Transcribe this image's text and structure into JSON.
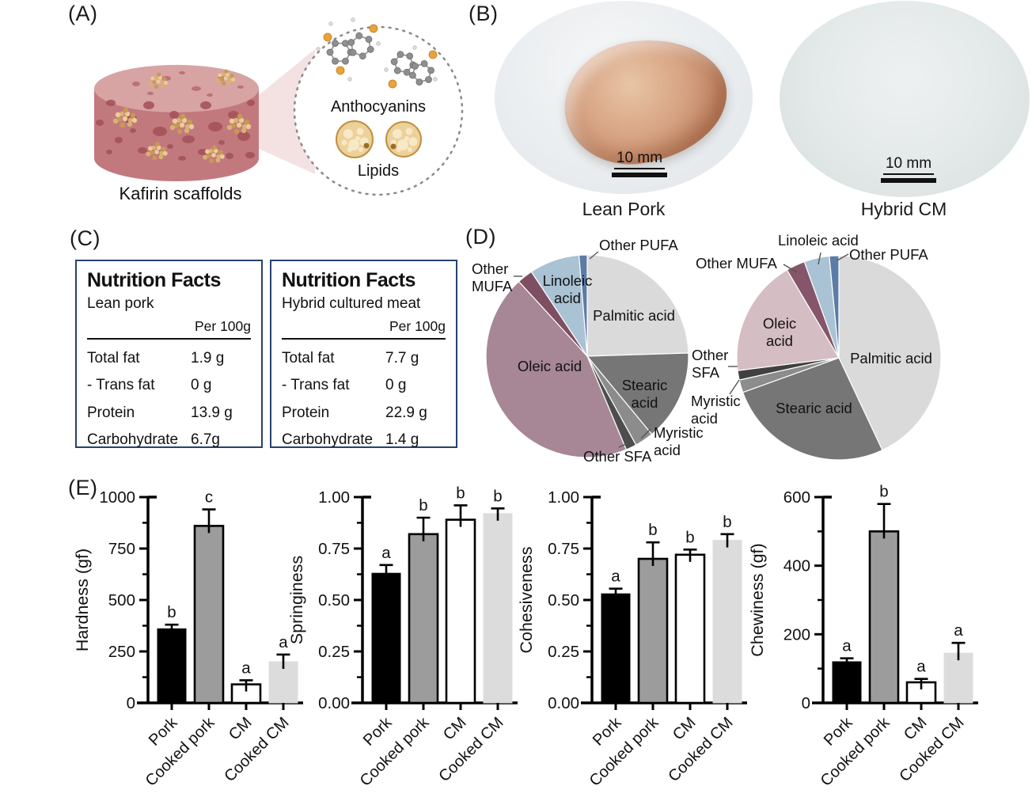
{
  "panels": {
    "a": {
      "label": "(A)",
      "scaffold_caption": "Kafirin scaffolds",
      "anthocyanins_label": "Anthocyanins",
      "lipids_label": "Lipids"
    },
    "b": {
      "label": "(B)",
      "items": [
        {
          "caption": "Lean Pork",
          "scalebar": "10 mm"
        },
        {
          "caption": "Hybrid CM",
          "scalebar": "10 mm"
        }
      ]
    },
    "c": {
      "label": "(C)",
      "tables": [
        {
          "title": "Nutrition Facts",
          "subtitle": "Lean pork",
          "per": "Per 100g",
          "rows": [
            [
              "Total fat",
              "1.9 g"
            ],
            [
              "- Trans fat",
              "0 g"
            ],
            [
              "Protein",
              "13.9 g"
            ],
            [
              "Carbohydrate",
              "6.7g"
            ]
          ]
        },
        {
          "title": "Nutrition Facts",
          "subtitle": "Hybrid cultured meat",
          "per": "Per 100g",
          "rows": [
            [
              "Total fat",
              "7.7 g"
            ],
            [
              "- Trans fat",
              "0 g"
            ],
            [
              "Protein",
              "22.9 g"
            ],
            [
              "Carbohydrate",
              "1.4 g"
            ]
          ]
        }
      ]
    },
    "d": {
      "label": "(D)"
    },
    "e": {
      "label": "(E)"
    }
  },
  "chart_data": [
    {
      "type": "pie",
      "name": "lean-pork-fatty-acid-pie",
      "legend_position": "none",
      "slices": [
        {
          "label": "Palmitic acid",
          "value": 24.5,
          "color": "#dadada"
        },
        {
          "label": "Stearic acid",
          "value": 14.5,
          "color": "#767676"
        },
        {
          "label": "Myristic acid",
          "value": 3.0,
          "color": "#8c8c8c"
        },
        {
          "label": "Other SFA",
          "value": 1.7,
          "color": "#4d4d4d"
        },
        {
          "label": "Oleic acid",
          "value": 44.5,
          "color": "#a78795"
        },
        {
          "label": "Other MUFA",
          "value": 2.5,
          "color": "#7e4f60"
        },
        {
          "label": "Linoleic acid",
          "value": 8.0,
          "color": "#a9c2d4"
        },
        {
          "label": "Other PUFA",
          "value": 1.3,
          "color": "#5c7ca6"
        }
      ]
    },
    {
      "type": "pie",
      "name": "hybrid-cm-fatty-acid-pie",
      "legend_position": "none",
      "slices": [
        {
          "label": "Palmitic acid",
          "value": 43.0,
          "color": "#dadada"
        },
        {
          "label": "Stearic acid",
          "value": 26.5,
          "color": "#767676"
        },
        {
          "label": "Myristic acid",
          "value": 2.0,
          "color": "#8c8c8c"
        },
        {
          "label": "Other SFA",
          "value": 1.5,
          "color": "#404040"
        },
        {
          "label": "Oleic acid",
          "value": 18.5,
          "color": "#d5bdc4"
        },
        {
          "label": "Other MUFA",
          "value": 3.0,
          "color": "#85566a"
        },
        {
          "label": "Linoleic acid",
          "value": 4.0,
          "color": "#a9c2d4"
        },
        {
          "label": "Other PUFA",
          "value": 1.5,
          "color": "#5c7ca6"
        }
      ]
    },
    {
      "type": "bar",
      "key": "hardness",
      "ylabel": "Hardness (gf)",
      "ylim": [
        0,
        1000
      ],
      "minor_step": 125,
      "yticks": [
        {
          "v": 0,
          "t": "0"
        },
        {
          "v": 250,
          "t": "250"
        },
        {
          "v": 500,
          "t": "500"
        },
        {
          "v": 750,
          "t": "750"
        },
        {
          "v": 1000,
          "t": "1000"
        }
      ],
      "categories": [
        "Pork",
        "Cooked pork",
        "CM",
        "Cooked CM"
      ],
      "values": [
        360,
        860,
        90,
        200
      ],
      "errors": [
        20,
        80,
        20,
        35
      ],
      "letters": [
        "b",
        "c",
        "a",
        "a"
      ],
      "bar_colors": [
        "#000000",
        "#9c9c9c",
        "#ffffff",
        "#dcdcdc"
      ],
      "bar_borders": [
        "#000000",
        "#000000",
        "#000000",
        "#dcdcdc"
      ]
    },
    {
      "type": "bar",
      "key": "springiness",
      "ylabel": "Springiness",
      "ylim": [
        0,
        1.0
      ],
      "minor_step": 0.125,
      "yticks": [
        {
          "v": 0,
          "t": "0.00"
        },
        {
          "v": 0.25,
          "t": "0.25"
        },
        {
          "v": 0.5,
          "t": "0.50"
        },
        {
          "v": 0.75,
          "t": "0.75"
        },
        {
          "v": 1.0,
          "t": "1.00"
        }
      ],
      "categories": [
        "Pork",
        "Cooked pork",
        "CM",
        "Cooked CM"
      ],
      "values": [
        0.63,
        0.82,
        0.89,
        0.92
      ],
      "errors": [
        0.04,
        0.08,
        0.07,
        0.025
      ],
      "letters": [
        "a",
        "b",
        "b",
        "b"
      ],
      "bar_colors": [
        "#000000",
        "#9c9c9c",
        "#ffffff",
        "#dcdcdc"
      ],
      "bar_borders": [
        "#000000",
        "#000000",
        "#000000",
        "#dcdcdc"
      ]
    },
    {
      "type": "bar",
      "key": "cohesiveness",
      "ylabel": "Cohesiveness",
      "ylim": [
        0,
        1.0
      ],
      "minor_step": 0.125,
      "yticks": [
        {
          "v": 0,
          "t": "0.00"
        },
        {
          "v": 0.25,
          "t": "0.25"
        },
        {
          "v": 0.5,
          "t": "0.50"
        },
        {
          "v": 0.75,
          "t": "0.75"
        },
        {
          "v": 1.0,
          "t": "1.00"
        }
      ],
      "categories": [
        "Pork",
        "Cooked pork",
        "CM",
        "Cooked CM"
      ],
      "values": [
        0.53,
        0.7,
        0.72,
        0.79
      ],
      "errors": [
        0.025,
        0.08,
        0.025,
        0.03
      ],
      "letters": [
        "a",
        "b",
        "b",
        "b"
      ],
      "bar_colors": [
        "#000000",
        "#9c9c9c",
        "#ffffff",
        "#dcdcdc"
      ],
      "bar_borders": [
        "#000000",
        "#000000",
        "#000000",
        "#dcdcdc"
      ]
    },
    {
      "type": "bar",
      "key": "chewiness",
      "ylabel": "Chewiness (gf)",
      "ylim": [
        0,
        600
      ],
      "minor_step": 100,
      "yticks": [
        {
          "v": 0,
          "t": "0"
        },
        {
          "v": 200,
          "t": "200"
        },
        {
          "v": 400,
          "t": "400"
        },
        {
          "v": 600,
          "t": "600"
        }
      ],
      "categories": [
        "Pork",
        "Cooked pork",
        "CM",
        "Cooked CM"
      ],
      "values": [
        120,
        500,
        60,
        145
      ],
      "errors": [
        10,
        80,
        10,
        30
      ],
      "letters": [
        "a",
        "b",
        "a",
        "a"
      ],
      "bar_colors": [
        "#000000",
        "#9c9c9c",
        "#ffffff",
        "#dcdcdc"
      ],
      "bar_borders": [
        "#000000",
        "#000000",
        "#000000",
        "#dcdcdc"
      ]
    }
  ]
}
